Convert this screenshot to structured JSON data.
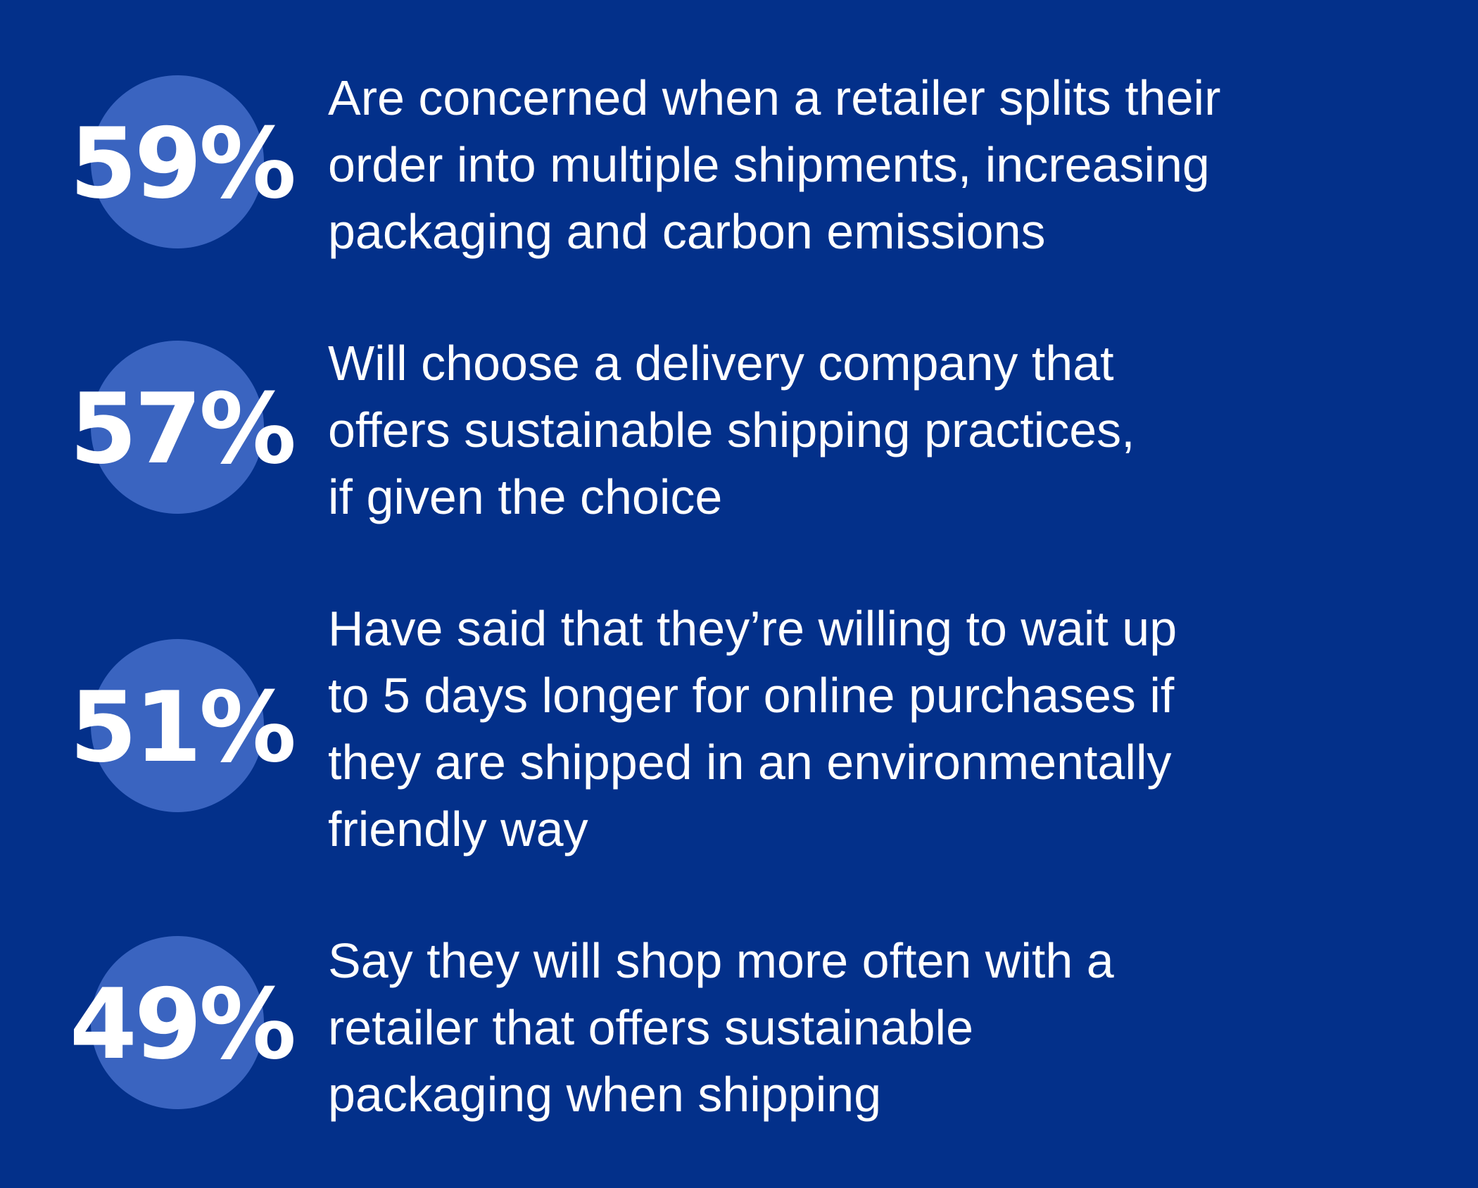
{
  "stats": [
    {
      "value": "59%",
      "lines": [
        "Are concerned when a retailer splits their",
        "order into multiple shipments, increasing",
        "packaging and carbon emissions"
      ]
    },
    {
      "value": "57%",
      "lines": [
        "Will choose a delivery company that",
        "offers sustainable shipping practices,",
        "if given the choice"
      ]
    },
    {
      "value": "51%",
      "lines": [
        "Have said that they’re willing to wait up",
        "to 5 days longer for online purchases if",
        "they are shipped in an environmentally",
        "friendly way"
      ]
    },
    {
      "value": "49%",
      "lines": [
        "Say they will shop more often with a",
        "retailer that offers sustainable",
        "packaging when shipping"
      ]
    }
  ]
}
